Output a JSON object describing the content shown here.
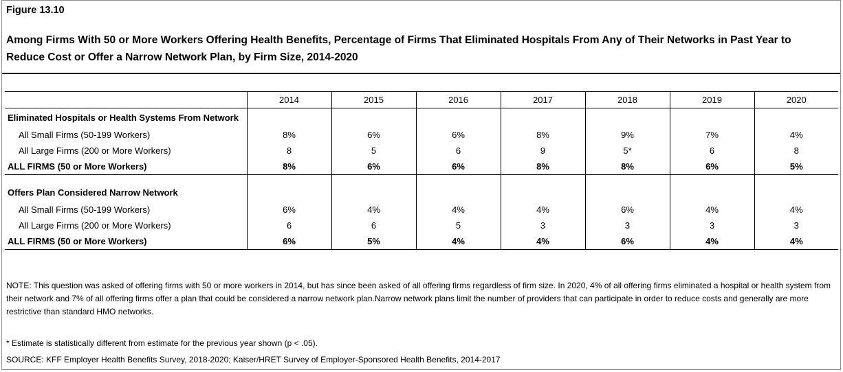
{
  "figure": {
    "label": "Figure 13.10",
    "title": "Among Firms With 50 or More Workers Offering Health Benefits, Percentage of Firms That Eliminated Hospitals From Any of Their Networks in Past Year to Reduce Cost or Offer a Narrow Network Plan, by Firm Size, 2014-2020"
  },
  "table": {
    "years": [
      "2014",
      "2015",
      "2016",
      "2017",
      "2018",
      "2019",
      "2020"
    ],
    "sections": [
      {
        "heading": "Eliminated Hospitals or Health Systems From Network",
        "rows": [
          {
            "label": "All Small Firms (50-199 Workers)",
            "values": [
              "8%",
              "6%",
              "6%",
              "8%",
              "9%",
              "7%",
              "4%"
            ]
          },
          {
            "label": "All Large Firms (200 or More Workers)",
            "values": [
              "8",
              "5",
              "6",
              "9",
              "5*",
              "6",
              "8"
            ]
          }
        ],
        "total": {
          "label": "ALL FIRMS (50 or More Workers)",
          "values": [
            "8%",
            "6%",
            "6%",
            "8%",
            "8%",
            "6%",
            "5%"
          ]
        }
      },
      {
        "heading": "Offers Plan Considered Narrow Network",
        "rows": [
          {
            "label": "All Small Firms (50-199 Workers)",
            "values": [
              "6%",
              "4%",
              "4%",
              "4%",
              "6%",
              "4%",
              "4%"
            ]
          },
          {
            "label": "All Large Firms (200 or More Workers)",
            "values": [
              "6",
              "6",
              "5",
              "3",
              "3",
              "3",
              "3"
            ]
          }
        ],
        "total": {
          "label": "ALL FIRMS (50 or More Workers)",
          "values": [
            "6%",
            "5%",
            "4%",
            "4%",
            "6%",
            "4%",
            "4%"
          ]
        }
      }
    ]
  },
  "notes": {
    "note": "NOTE: This question was asked of offering firms with 50 or more workers in 2014, but has since been asked of all offering firms regardless of firm size. In 2020, 4% of all offering firms eliminated a hospital or health system from their network and 7% of all offering firms offer a plan that could be considered a narrow network plan.Narrow network plans limit the number of providers that can participate in order to reduce costs and generally are more restrictive than standard HMO networks.",
    "footnote": "* Estimate is statistically different from estimate for the previous year shown (p < .05).",
    "source": "SOURCE: KFF Employer Health Benefits Survey, 2018-2020; Kaiser/HRET Survey of Employer-Sponsored Health Benefits, 2014-2017"
  }
}
